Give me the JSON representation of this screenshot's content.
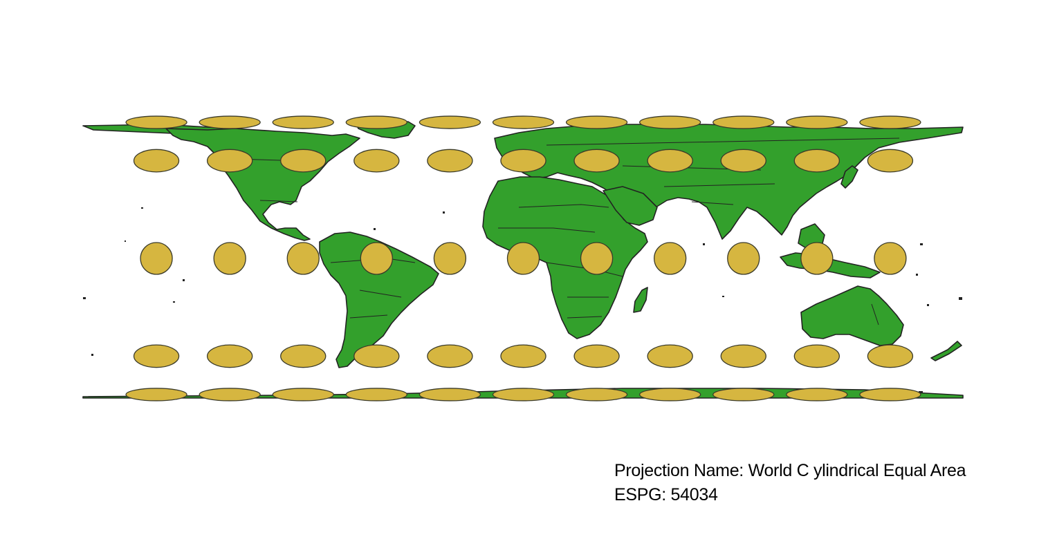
{
  "map": {
    "projection_name_label": "Projection Name: World C ylindrical Equal Area",
    "espg_label": "ESPG: 54034",
    "colors": {
      "land": "#33a02c",
      "outline": "#222222",
      "indicatrix": "#d6b640",
      "background": "#ffffff"
    },
    "tissot_grid": {
      "longitudes": [
        -150,
        -120,
        -90,
        -60,
        -30,
        0,
        30,
        60,
        90,
        120,
        150
      ],
      "latitudes": [
        80,
        45,
        0,
        -45,
        -80
      ]
    }
  }
}
